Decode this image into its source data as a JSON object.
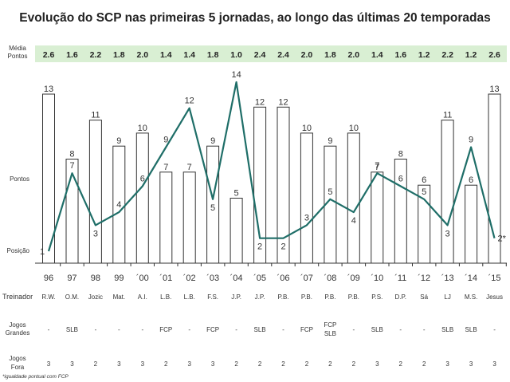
{
  "title": "Evolução do SCP nas primeiras 5 jornadas, ao longo das últimas 20 temporadas",
  "row_labels": {
    "media_line1": "Média",
    "media_line2": "Pontos",
    "pontos": "Pontos",
    "posicao": "Posição",
    "treinador": "Treinador",
    "jogos_grandes_line1": "Jogos",
    "jogos_grandes_line2": "Grandes",
    "jogos_fora_line1": "Jogos",
    "jogos_fora_line2": "Fora"
  },
  "footnote": "*igualdade pontual com FCP",
  "colors": {
    "avg_band": "#d9efd3",
    "line": "#1f6e68",
    "bar_stroke": "#333333",
    "bar_fill": "#ffffff"
  },
  "chart_data": {
    "type": "bar",
    "categories": [
      "96",
      "97",
      "98",
      "99",
      "´00",
      "´01",
      "´02",
      "´03",
      "´04",
      "´05",
      "´06",
      "´07",
      "´08",
      "´09",
      "´10",
      "´11",
      "´12",
      "´13",
      "´14",
      "´15"
    ],
    "series": [
      {
        "name": "Pontos",
        "type": "bar",
        "values": [
          13,
          8,
          11,
          9,
          10,
          7,
          7,
          9,
          5,
          12,
          12,
          10,
          9,
          10,
          7,
          8,
          6,
          11,
          6,
          13
        ]
      },
      {
        "name": "Posição",
        "type": "line",
        "values": [
          1,
          7,
          3,
          4,
          6,
          9,
          12,
          5,
          14,
          2,
          2,
          3,
          5,
          4,
          7,
          6,
          5,
          3,
          9,
          2
        ]
      }
    ],
    "position_labels": [
      "1",
      "7",
      "3",
      "4",
      "6",
      "9",
      "12",
      "5",
      "14",
      "2",
      "2",
      "3",
      "5",
      "4",
      "7",
      "6",
      "5",
      "3",
      "9",
      "2*"
    ],
    "media_pontos": [
      "2.6",
      "1.6",
      "2.2",
      "1.8",
      "2.0",
      "1.4",
      "1.4",
      "1.8",
      "1.0",
      "2.4",
      "2.4",
      "2.0",
      "1.8",
      "2.0",
      "1.4",
      "1.6",
      "1.2",
      "2.2",
      "1.2",
      "2.6"
    ],
    "treinador": [
      "R.W.",
      "O.M.",
      "Jozic",
      "Mat.",
      "A.I.",
      "L.B.",
      "L.B.",
      "F.S.",
      "J.P.",
      "J.P.",
      "P.B.",
      "P.B.",
      "P.B.",
      "P.B.",
      "P.S.",
      "D.P.",
      "Sá",
      "LJ",
      "M.S.",
      "Jesus"
    ],
    "jogos_grandes": [
      [
        "-"
      ],
      [
        "SLB"
      ],
      [
        "-"
      ],
      [
        "-"
      ],
      [
        "-"
      ],
      [
        "FCP"
      ],
      [
        "-"
      ],
      [
        "FCP"
      ],
      [
        "-"
      ],
      [
        "SLB"
      ],
      [
        "-"
      ],
      [
        "FCP"
      ],
      [
        "FCP",
        "SLB"
      ],
      [
        "-"
      ],
      [
        "SLB"
      ],
      [
        "-"
      ],
      [
        "-"
      ],
      [
        "SLB"
      ],
      [
        "SLB"
      ],
      [
        "-"
      ]
    ],
    "jogos_fora": [
      "3",
      "3",
      "2",
      "3",
      "3",
      "2",
      "3",
      "3",
      "2",
      "2",
      "2",
      "2",
      "2",
      "2",
      "3",
      "2",
      "2",
      "3",
      "3",
      "3"
    ],
    "points_range": [
      0,
      15
    ],
    "position_range": [
      1,
      14
    ]
  }
}
